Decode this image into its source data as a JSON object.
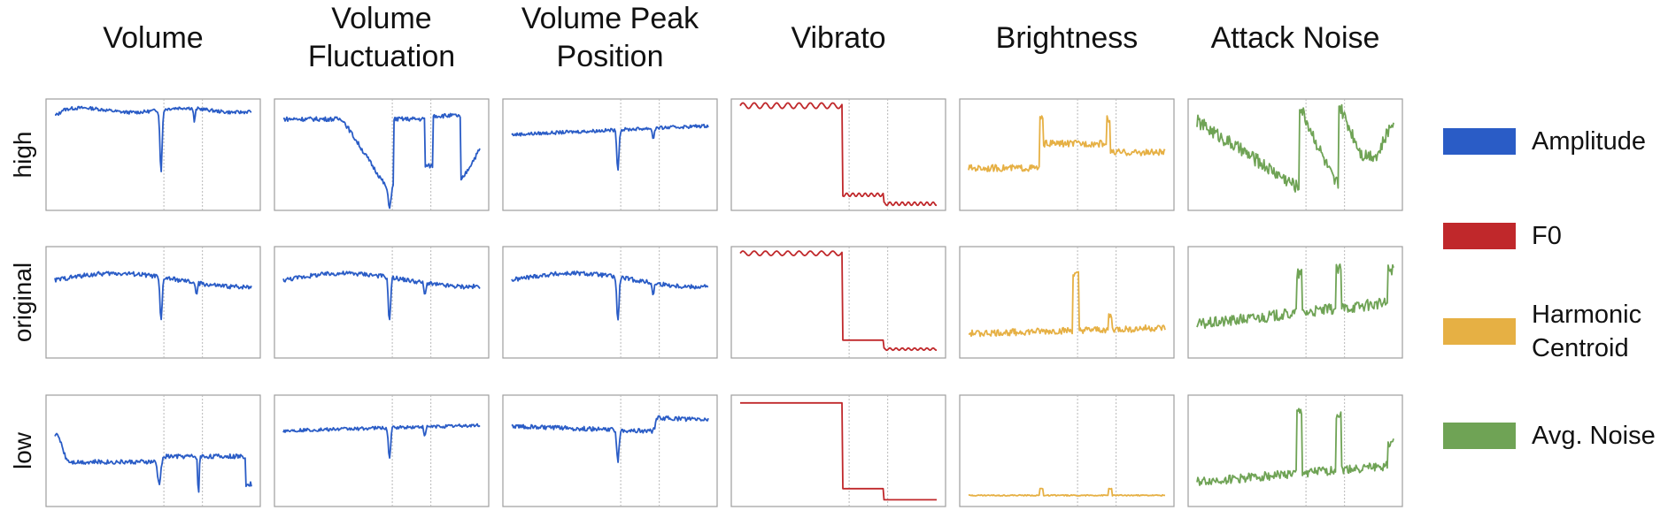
{
  "columns": [
    {
      "key": "volume",
      "title": "Volume"
    },
    {
      "key": "volume_fluctuation",
      "title": "Volume\nFluctuation"
    },
    {
      "key": "volume_peak_position",
      "title": "Volume Peak\nPosition"
    },
    {
      "key": "vibrato",
      "title": "Vibrato"
    },
    {
      "key": "brightness",
      "title": "Brightness"
    },
    {
      "key": "attack_noise",
      "title": "Attack Noise"
    }
  ],
  "rows": [
    {
      "key": "high",
      "label": "high"
    },
    {
      "key": "original",
      "label": "original"
    },
    {
      "key": "low",
      "label": "low"
    }
  ],
  "legend": [
    {
      "label": "Amplitude",
      "color": "#2a5cc6"
    },
    {
      "label": "F0",
      "color": "#c0282b"
    },
    {
      "label": "Harmonic\nCentroid",
      "color": "#e6b044"
    },
    {
      "label": "Avg. Noise",
      "color": "#6fa355"
    }
  ],
  "chart_data": {
    "type": "line",
    "note_boundaries": [
      0.55,
      0.73
    ],
    "series_by_column": {
      "volume": "Amplitude",
      "volume_fluctuation": "Amplitude",
      "volume_peak_position": "Amplitude",
      "vibrato": "F0",
      "brightness": "Harmonic Centroid",
      "attack_noise": "Avg. Noise"
    },
    "panels": [
      {
        "row": "high",
        "col": "volume",
        "profile": "volHigh"
      },
      {
        "row": "high",
        "col": "volume_fluctuation",
        "profile": "flucHigh"
      },
      {
        "row": "high",
        "col": "volume_peak_position",
        "profile": "peakHigh"
      },
      {
        "row": "high",
        "col": "vibrato",
        "profile": "vibHigh"
      },
      {
        "row": "high",
        "col": "brightness",
        "profile": "brightHigh"
      },
      {
        "row": "high",
        "col": "attack_noise",
        "profile": "noiseHigh"
      },
      {
        "row": "original",
        "col": "volume",
        "profile": "volOrig"
      },
      {
        "row": "original",
        "col": "volume_fluctuation",
        "profile": "volOrig"
      },
      {
        "row": "original",
        "col": "volume_peak_position",
        "profile": "volOrig"
      },
      {
        "row": "original",
        "col": "vibrato",
        "profile": "vibOrig"
      },
      {
        "row": "original",
        "col": "brightness",
        "profile": "brightOrig"
      },
      {
        "row": "original",
        "col": "attack_noise",
        "profile": "noiseOrig"
      },
      {
        "row": "low",
        "col": "volume",
        "profile": "volLow"
      },
      {
        "row": "low",
        "col": "volume_fluctuation",
        "profile": "flucLow"
      },
      {
        "row": "low",
        "col": "volume_peak_position",
        "profile": "peakLow"
      },
      {
        "row": "low",
        "col": "vibrato",
        "profile": "vibLow"
      },
      {
        "row": "low",
        "col": "brightness",
        "profile": "brightLow"
      },
      {
        "row": "low",
        "col": "attack_noise",
        "profile": "noiseLow"
      }
    ]
  }
}
